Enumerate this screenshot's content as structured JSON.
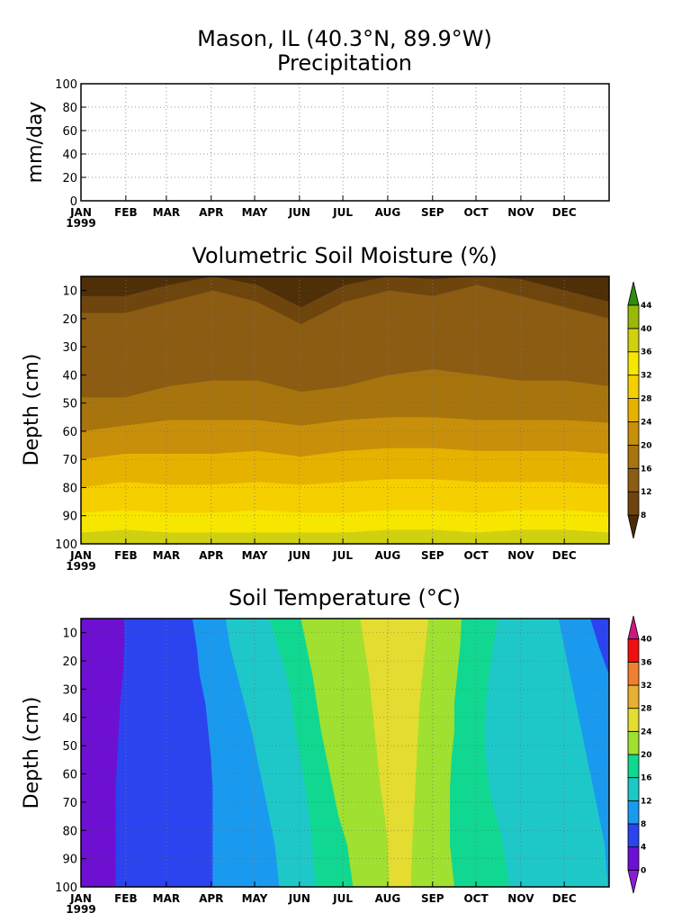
{
  "figure": {
    "title_line1": "Mason, IL  (40.3°N, 89.9°W)",
    "year": "1999",
    "months": [
      "JAN",
      "FEB",
      "MAR",
      "APR",
      "MAY",
      "JUN",
      "JUL",
      "AUG",
      "SEP",
      "OCT",
      "NOV",
      "DEC"
    ]
  },
  "chart_data": [
    {
      "type": "line",
      "title": "Precipitation",
      "ylabel": "mm/day",
      "ylim": [
        0,
        100
      ],
      "yticks": [
        0,
        20,
        40,
        60,
        80,
        100
      ],
      "x_range_days": [
        0,
        365
      ],
      "grid": true,
      "series": []
    },
    {
      "type": "heatmap",
      "title": "Volumetric Soil Moisture (%)",
      "ylabel": "Depth (cm)",
      "y_range": [
        5,
        100
      ],
      "yticks": [
        10,
        20,
        30,
        40,
        50,
        60,
        70,
        80,
        90,
        100
      ],
      "y_inverted": true,
      "colorbar_levels": [
        8,
        12,
        16,
        20,
        24,
        28,
        32,
        36,
        40,
        44
      ],
      "colorbar_colors": [
        "#4a2c08",
        "#6e450d",
        "#8c5c12",
        "#a8740e",
        "#c8900a",
        "#e6b200",
        "#f5cf00",
        "#f7e600",
        "#cfd010",
        "#9ab80a",
        "#2e8c10"
      ],
      "contour_boundaries_depth_cm": [
        {
          "from": 8,
          "to": 12,
          "depth": [
            18,
            18,
            14,
            10,
            14,
            22,
            14,
            10,
            12,
            8,
            12,
            16,
            20
          ]
        },
        {
          "from": 12,
          "to": 16,
          "depth": [
            48,
            48,
            44,
            42,
            42,
            46,
            44,
            40,
            38,
            40,
            42,
            42,
            44
          ]
        },
        {
          "from": 16,
          "to": 20,
          "depth": [
            60,
            58,
            56,
            56,
            56,
            58,
            56,
            55,
            55,
            56,
            56,
            56,
            57
          ]
        },
        {
          "from": 20,
          "to": 24,
          "depth": [
            70,
            68,
            68,
            68,
            67,
            69,
            67,
            66,
            66,
            67,
            67,
            67,
            68
          ]
        },
        {
          "from": 24,
          "to": 28,
          "depth": [
            80,
            78,
            79,
            79,
            78,
            79,
            78,
            77,
            77,
            78,
            78,
            78,
            79
          ]
        },
        {
          "from": 28,
          "to": 32,
          "depth": [
            89,
            88,
            89,
            89,
            88,
            89,
            89,
            88,
            88,
            89,
            88,
            88,
            89
          ]
        },
        {
          "from": 32,
          "to": 36,
          "depth": [
            96,
            95,
            96,
            96,
            96,
            96,
            96,
            95,
            95,
            96,
            95,
            95,
            96
          ]
        }
      ],
      "month_index": [
        0,
        1,
        2,
        3,
        4,
        5,
        6,
        7,
        8,
        9,
        10,
        11,
        12
      ]
    },
    {
      "type": "heatmap",
      "title": "Soil Temperature (°C)",
      "ylabel": "Depth (cm)",
      "y_range": [
        5,
        100
      ],
      "yticks": [
        10,
        20,
        30,
        40,
        50,
        60,
        70,
        80,
        90,
        100
      ],
      "y_inverted": true,
      "colorbar_levels": [
        0,
        4,
        8,
        12,
        16,
        20,
        24,
        28,
        32,
        36,
        40
      ],
      "colorbar_colors": [
        "#8a1ed6",
        "#6e10d2",
        "#2b44f0",
        "#1a9aef",
        "#1ec8c8",
        "#10d890",
        "#a0e030",
        "#e4dc30",
        "#e8b030",
        "#f08030",
        "#ee1010",
        "#d01880"
      ],
      "band_boundaries_day": [
        {
          "from": 0,
          "to": 4,
          "day": [
            30,
            30,
            29,
            27,
            26,
            25,
            24,
            24,
            24,
            24
          ]
        },
        {
          "from": 4,
          "to": 8,
          "day": [
            77,
            80,
            82,
            86,
            88,
            90,
            91,
            91,
            91,
            91
          ]
        },
        {
          "from": 8,
          "to": 12,
          "day": [
            100,
            103,
            108,
            113,
            118,
            122,
            126,
            130,
            134,
            137
          ]
        },
        {
          "from": 12,
          "to": 16,
          "day": [
            130,
            136,
            142,
            146,
            148,
            152,
            155,
            158,
            160,
            162
          ]
        },
        {
          "from": 16,
          "to": 20,
          "day": [
            152,
            156,
            160,
            163,
            166,
            170,
            174,
            178,
            184,
            188
          ]
        },
        {
          "from": 20,
          "to": 24,
          "day": [
            193,
            196,
            199,
            201,
            203,
            205,
            207,
            210,
            212,
            213
          ]
        },
        {
          "from": 24,
          "to": 20,
          "day": [
            240,
            238,
            236,
            234,
            233,
            232,
            231,
            230,
            229,
            228
          ]
        },
        {
          "from": 20,
          "to": 16,
          "day": [
            263,
            262,
            260,
            258,
            258,
            256,
            255,
            255,
            255,
            258
          ]
        },
        {
          "from": 16,
          "to": 12,
          "day": [
            288,
            285,
            282,
            280,
            279,
            280,
            282,
            287,
            292,
            296
          ]
        },
        {
          "from": 12,
          "to": 8,
          "day": [
            330,
            334,
            338,
            342,
            346,
            350,
            354,
            358,
            362,
            364
          ]
        },
        {
          "from": 8,
          "to": 4,
          "day": [
            352,
            358,
            365,
            365,
            365,
            365,
            365,
            365,
            365,
            365
          ]
        }
      ],
      "boundary_depths_cm": [
        5,
        15,
        25,
        35,
        45,
        55,
        65,
        75,
        85,
        100
      ]
    }
  ]
}
